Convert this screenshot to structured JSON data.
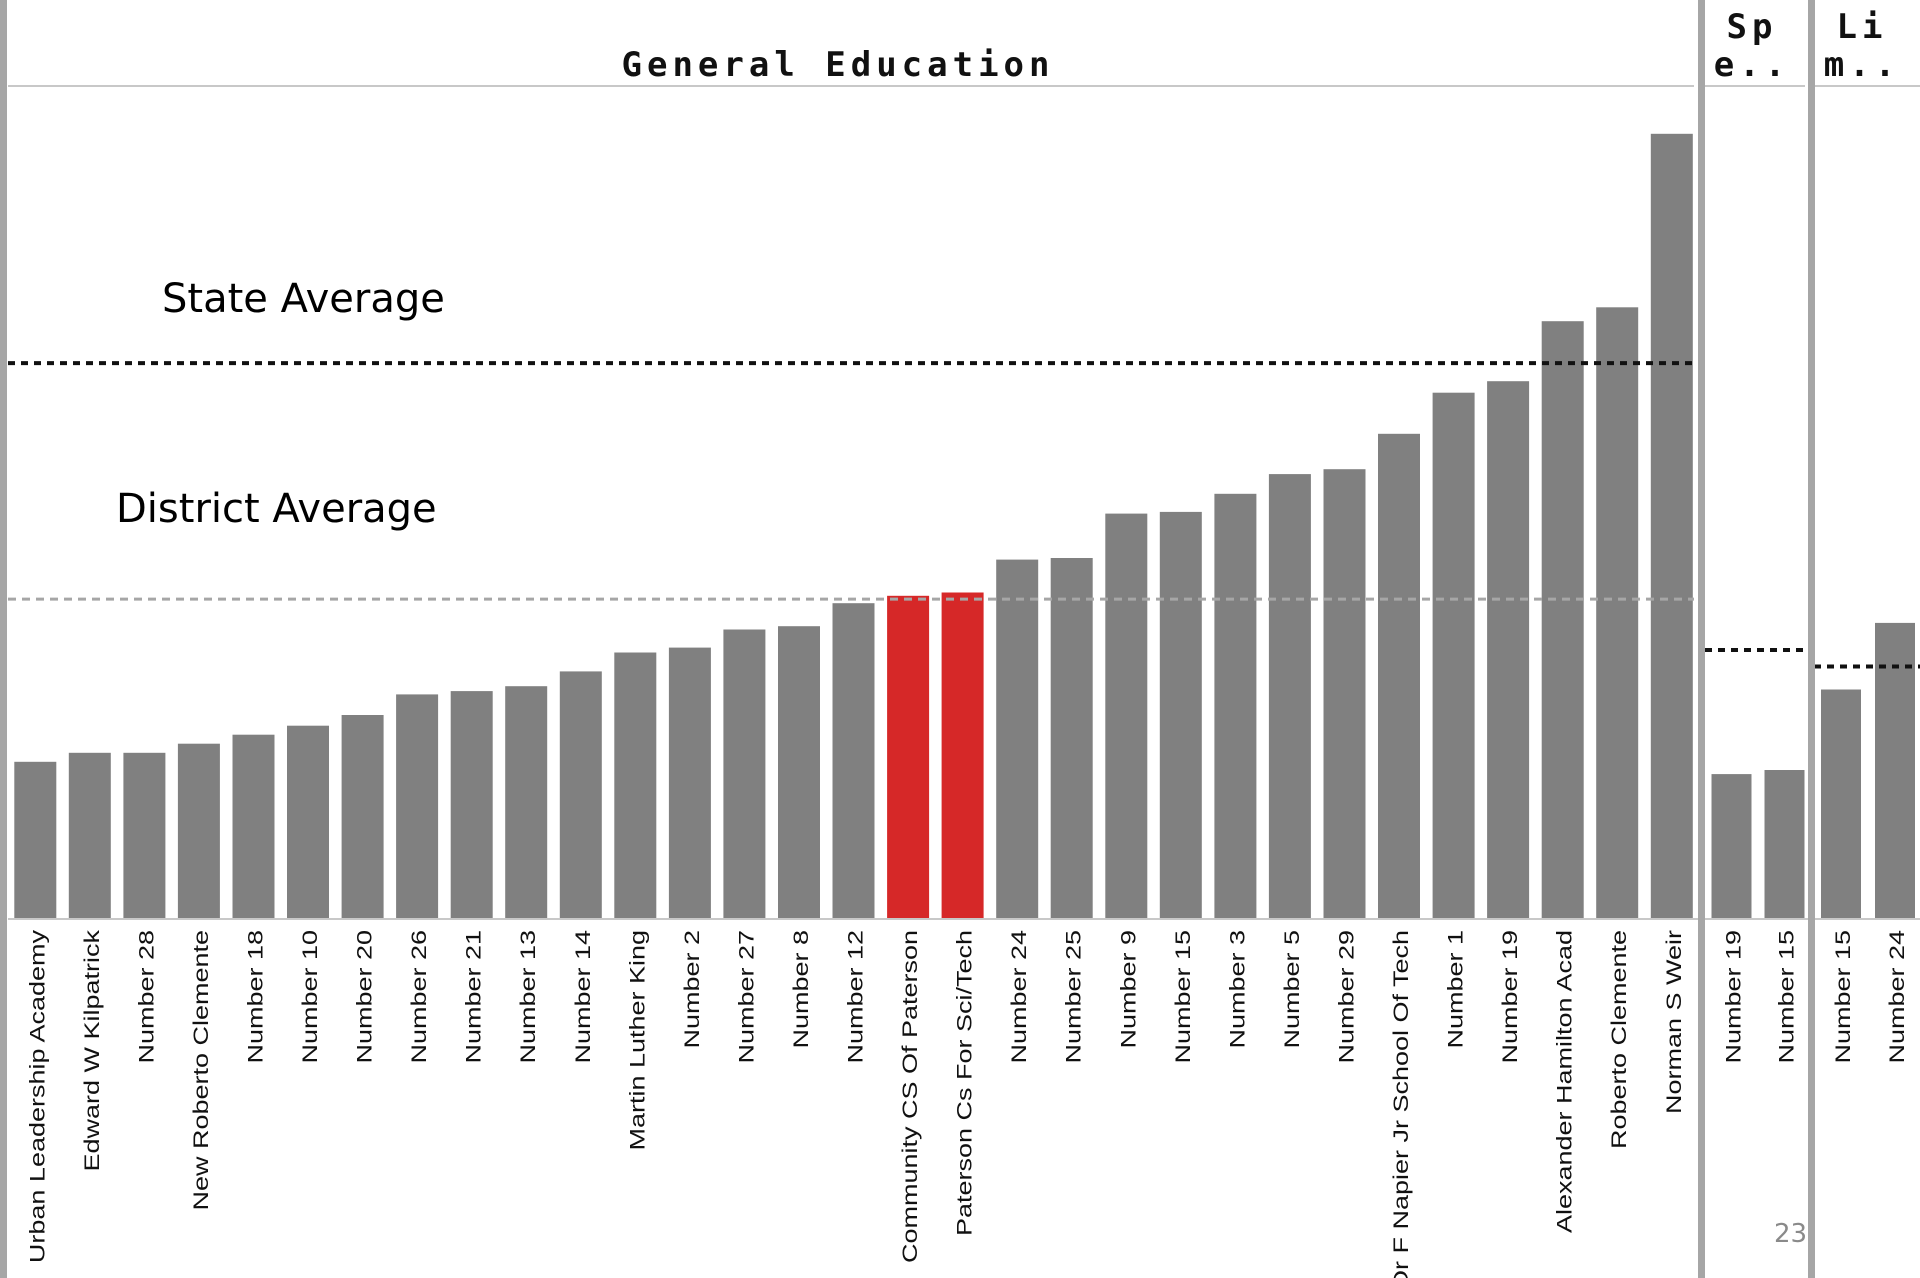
{
  "page_number": "23",
  "annotations": {
    "state_average": "State Average",
    "district_average": "District Average"
  },
  "colors": {
    "bar": "#808080",
    "highlight": "#d62828",
    "state_line": "#111111",
    "district_line": "#a6a6a6",
    "separator": "#a6a6a6"
  },
  "chart_data": [
    {
      "type": "bar",
      "title": "General Education",
      "ylim": [
        0,
        100
      ],
      "grid": false,
      "state_average": 67.5,
      "district_average": 38.8,
      "highlighted": [
        "Community CS Of Paterson",
        "Paterson Cs For Sci/Tech"
      ],
      "categories": [
        "Urban Leadership Academy",
        "Edward W Kilpatrick",
        "Number 28",
        "New Roberto Clemente",
        "Number 18",
        "Number 10",
        "Number 20",
        "Number 26",
        "Number 21",
        "Number 13",
        "Number 14",
        "Martin Luther King",
        "Number 2",
        "Number 27",
        "Number 8",
        "Number 12",
        "Community CS Of Paterson",
        "Paterson Cs For Sci/Tech",
        "Number 24",
        "Number 25",
        "Number 9",
        "Number 15",
        "Number 3",
        "Number 5",
        "Number 29",
        "Dr F Napier Jr School Of Tech",
        "Number 1",
        "Number 19",
        "Alexander Hamilton Acad",
        "Roberto Clemente",
        "Norman S Weir"
      ],
      "values": [
        19.0,
        20.1,
        20.1,
        21.2,
        22.3,
        23.4,
        24.7,
        27.2,
        27.6,
        28.2,
        30.0,
        32.3,
        32.9,
        35.1,
        35.5,
        38.3,
        39.2,
        39.6,
        43.6,
        43.8,
        49.2,
        49.4,
        51.6,
        54.0,
        54.6,
        58.9,
        63.9,
        65.3,
        72.6,
        74.3,
        95.4
      ]
    },
    {
      "type": "bar",
      "title": "Sp e..",
      "ylim": [
        0,
        100
      ],
      "grid": false,
      "state_average": 32.6,
      "categories": [
        "Number 19",
        "Number 15"
      ],
      "values": [
        17.5,
        18.0
      ]
    },
    {
      "type": "bar",
      "title": "Li m..",
      "ylim": [
        0,
        100
      ],
      "grid": false,
      "state_average": 30.6,
      "categories": [
        "Number 15",
        "Number 24"
      ],
      "values": [
        27.8,
        35.9
      ]
    }
  ]
}
